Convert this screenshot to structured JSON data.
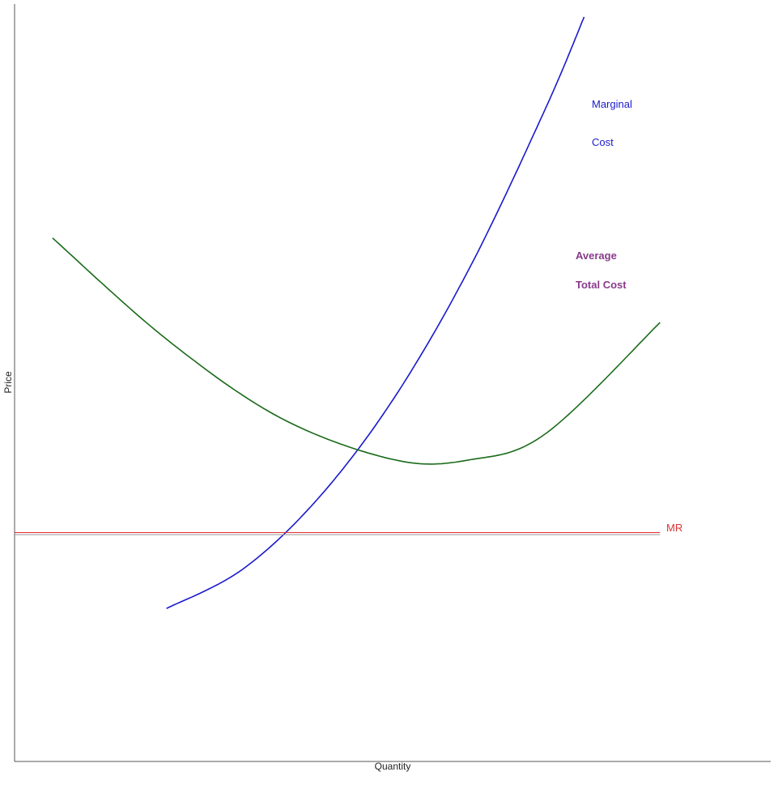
{
  "chart_data": {
    "type": "line",
    "title": "",
    "xlabel": "Quantity",
    "ylabel": "Price",
    "grid": false,
    "xlim": [
      0,
      10
    ],
    "ylim": [
      -3,
      10
    ],
    "series": [
      {
        "name": "Marginal Cost",
        "label_lines": [
          "Marginal",
          "Cost"
        ],
        "color": "#1a1acc",
        "x": [
          2.0,
          3.0,
          4.0,
          5.0,
          6.0,
          7.0,
          7.5
        ],
        "y": [
          -1.3,
          -0.62,
          0.62,
          2.37,
          4.65,
          7.43,
          9.0
        ]
      },
      {
        "name": "Average Total Cost",
        "label_lines": [
          "Average",
          "Total Cost"
        ],
        "color": "#1a6b1a",
        "label_color": "#8a3a8a",
        "x": [
          0.5,
          2.0,
          3.5,
          5.0,
          6.0,
          7.0,
          8.5
        ],
        "y": [
          5.15,
          3.39,
          2.02,
          1.29,
          1.29,
          1.75,
          3.68
        ]
      },
      {
        "name": "MR",
        "label_lines": [
          "MR"
        ],
        "color": "#e03030",
        "x": [
          0.0,
          8.5
        ],
        "y": [
          0.0,
          0.0
        ]
      }
    ]
  }
}
